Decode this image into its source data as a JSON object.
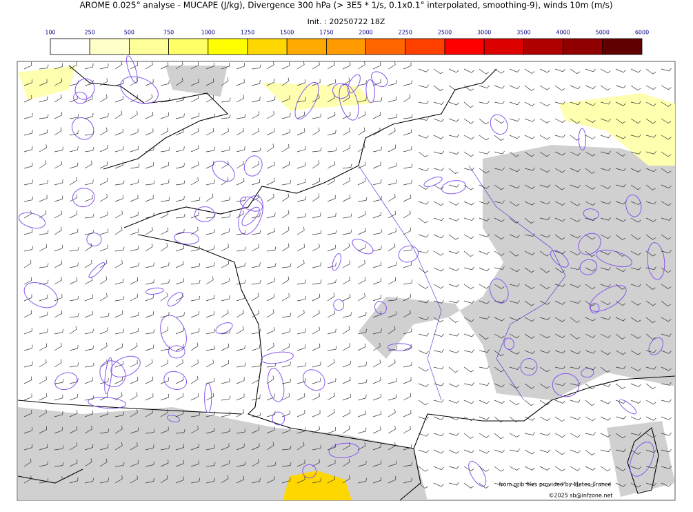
{
  "header": {
    "title": "AROME 0.025° analyse - MUCAPE (J/kg), Divergence 300 hPa (> 3E5 * 1/s, 0.1x0.1° interpolated, smoothing-9), winds 10m (m/s)",
    "init": "Init. : 20250722 18Z"
  },
  "colorbar": {
    "ticks": [
      100,
      250,
      500,
      750,
      1000,
      1250,
      1500,
      1750,
      2000,
      2250,
      2500,
      3000,
      3500,
      4000,
      5000,
      6000
    ],
    "colors": [
      "#ffffff",
      "#ffffc8",
      "#ffff99",
      "#ffff66",
      "#ffff00",
      "#ffd700",
      "#ffaa00",
      "#ff9a00",
      "#ff6600",
      "#ff4000",
      "#ff0000",
      "#dd0000",
      "#b00000",
      "#900000",
      "#600000"
    ]
  },
  "credits": {
    "source": "from grib files provided by Meteo-France",
    "copyright": "©2025 sb@infzone.net"
  }
}
